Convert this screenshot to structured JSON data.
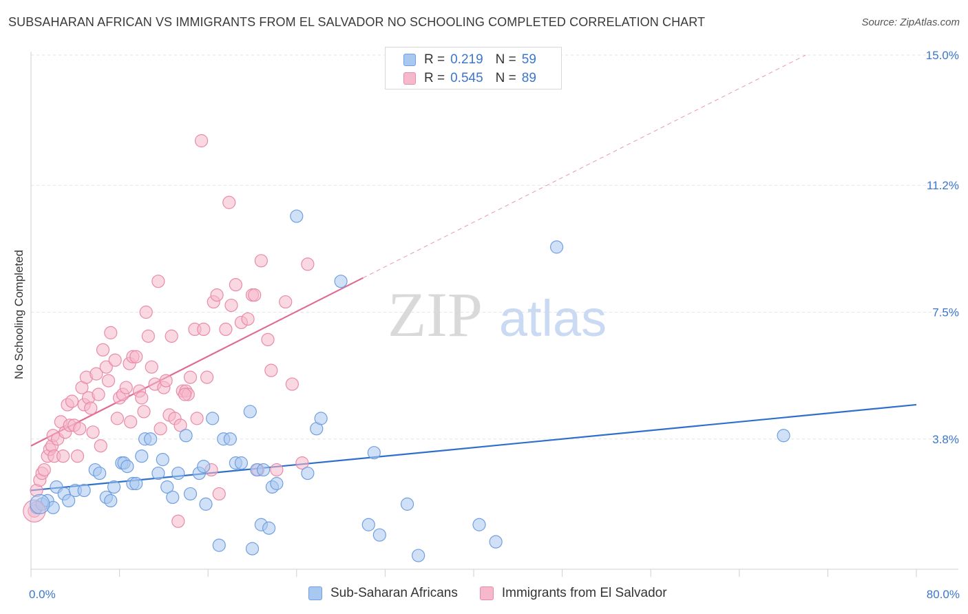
{
  "header": {
    "title": "SUBSAHARAN AFRICAN VS IMMIGRANTS FROM EL SALVADOR NO SCHOOLING COMPLETED CORRELATION CHART",
    "source": "Source: ZipAtlas.com"
  },
  "watermark": {
    "zip": "ZIP",
    "atlas": "atlas"
  },
  "legend": {
    "rows": [
      {
        "r_label": "R =",
        "r_value": "0.219",
        "n_label": "N =",
        "n_value": "59"
      },
      {
        "r_label": "R =",
        "r_value": "0.545",
        "n_label": "N =",
        "n_value": "89"
      }
    ]
  },
  "chart_data": {
    "type": "scatter",
    "title": "SUBSAHARAN AFRICAN VS IMMIGRANTS FROM EL SALVADOR NO SCHOOLING COMPLETED CORRELATION CHART",
    "ylabel": "No Schooling Completed",
    "xlim": [
      0,
      80
    ],
    "ylim": [
      0,
      15
    ],
    "x_tick_labels": [
      {
        "value": 0,
        "label": "0.0%"
      },
      {
        "value": 80,
        "label": "80.0%"
      }
    ],
    "y_tick_labels": [
      {
        "value": 3.8,
        "label": "3.8%"
      },
      {
        "value": 7.5,
        "label": "7.5%"
      },
      {
        "value": 11.2,
        "label": "11.2%"
      },
      {
        "value": 15.0,
        "label": "15.0%"
      }
    ],
    "grid": true,
    "legend_position": "top-center",
    "colors": {
      "blue_fill": "#a9c8f0",
      "blue_stroke": "#6f9fe0",
      "blue_line": "#2e6fcb",
      "pink_fill": "#f6b8cb",
      "pink_stroke": "#e98aa8",
      "pink_line": "#e06a94"
    },
    "series": [
      {
        "name": "Sub-Saharan Africans",
        "color": "#6f9fe0",
        "trend": {
          "x": [
            0,
            80
          ],
          "y": [
            2.3,
            4.8
          ],
          "extrapolated": false
        },
        "points": [
          [
            0.5,
            1.8
          ],
          [
            1.0,
            1.9
          ],
          [
            1.5,
            2.0
          ],
          [
            2.0,
            1.8
          ],
          [
            2.3,
            2.4
          ],
          [
            3.0,
            2.2
          ],
          [
            3.4,
            2.0
          ],
          [
            4.0,
            2.3
          ],
          [
            4.8,
            2.3
          ],
          [
            5.8,
            2.9
          ],
          [
            6.2,
            2.8
          ],
          [
            6.8,
            2.1
          ],
          [
            7.2,
            2.0
          ],
          [
            7.5,
            2.4
          ],
          [
            8.2,
            3.1
          ],
          [
            8.4,
            3.1
          ],
          [
            8.7,
            3.0
          ],
          [
            9.2,
            2.5
          ],
          [
            9.5,
            2.5
          ],
          [
            10.0,
            3.3
          ],
          [
            10.3,
            3.8
          ],
          [
            10.8,
            3.8
          ],
          [
            11.5,
            2.8
          ],
          [
            11.9,
            3.2
          ],
          [
            12.3,
            2.4
          ],
          [
            12.8,
            2.1
          ],
          [
            13.3,
            2.8
          ],
          [
            14.0,
            3.9
          ],
          [
            14.4,
            2.2
          ],
          [
            15.2,
            2.8
          ],
          [
            15.6,
            3.0
          ],
          [
            15.8,
            1.9
          ],
          [
            16.4,
            4.4
          ],
          [
            17.0,
            0.7
          ],
          [
            17.4,
            3.8
          ],
          [
            18.0,
            3.8
          ],
          [
            18.5,
            3.1
          ],
          [
            19.0,
            3.1
          ],
          [
            19.8,
            4.6
          ],
          [
            20.0,
            0.6
          ],
          [
            20.4,
            2.9
          ],
          [
            20.8,
            1.3
          ],
          [
            21.0,
            2.9
          ],
          [
            21.5,
            1.2
          ],
          [
            21.8,
            2.4
          ],
          [
            22.2,
            2.5
          ],
          [
            24.0,
            10.3
          ],
          [
            25.0,
            2.8
          ],
          [
            25.8,
            4.1
          ],
          [
            26.2,
            4.4
          ],
          [
            28.0,
            8.4
          ],
          [
            30.5,
            1.3
          ],
          [
            31.0,
            3.4
          ],
          [
            31.5,
            1.0
          ],
          [
            34.0,
            1.9
          ],
          [
            35.0,
            0.4
          ],
          [
            40.5,
            1.3
          ],
          [
            42.0,
            0.8
          ],
          [
            47.5,
            9.4
          ],
          [
            68.0,
            3.9
          ]
        ]
      },
      {
        "name": "Immigrants from El Salvador",
        "color": "#e98aa8",
        "trend": {
          "x": [
            0,
            30
          ],
          "y": [
            3.6,
            8.5
          ],
          "extrapolated_to": [
            70,
            15.0
          ]
        },
        "points": [
          [
            0.3,
            1.7
          ],
          [
            0.5,
            2.3
          ],
          [
            0.8,
            2.6
          ],
          [
            1.0,
            2.8
          ],
          [
            1.2,
            2.9
          ],
          [
            1.5,
            3.3
          ],
          [
            1.7,
            3.5
          ],
          [
            1.9,
            3.6
          ],
          [
            2.0,
            3.9
          ],
          [
            2.1,
            3.3
          ],
          [
            2.4,
            3.8
          ],
          [
            2.7,
            4.3
          ],
          [
            2.9,
            3.3
          ],
          [
            3.1,
            4.0
          ],
          [
            3.3,
            4.8
          ],
          [
            3.5,
            4.2
          ],
          [
            3.7,
            4.9
          ],
          [
            3.9,
            4.2
          ],
          [
            4.2,
            3.3
          ],
          [
            4.4,
            4.1
          ],
          [
            4.6,
            5.3
          ],
          [
            4.8,
            4.8
          ],
          [
            5.0,
            5.6
          ],
          [
            5.2,
            5.0
          ],
          [
            5.4,
            4.7
          ],
          [
            5.6,
            4.0
          ],
          [
            5.9,
            5.7
          ],
          [
            6.1,
            5.1
          ],
          [
            6.3,
            3.6
          ],
          [
            6.5,
            6.4
          ],
          [
            6.8,
            5.9
          ],
          [
            7.0,
            5.5
          ],
          [
            7.2,
            6.9
          ],
          [
            7.6,
            6.1
          ],
          [
            7.8,
            4.4
          ],
          [
            8.0,
            5.0
          ],
          [
            8.3,
            5.1
          ],
          [
            8.6,
            5.3
          ],
          [
            8.9,
            6.0
          ],
          [
            9.2,
            6.2
          ],
          [
            9.5,
            6.2
          ],
          [
            9.8,
            5.2
          ],
          [
            10.0,
            5.0
          ],
          [
            10.2,
            4.6
          ],
          [
            10.4,
            7.5
          ],
          [
            10.6,
            6.8
          ],
          [
            10.9,
            5.9
          ],
          [
            11.2,
            5.4
          ],
          [
            11.5,
            8.4
          ],
          [
            11.7,
            4.1
          ],
          [
            12.0,
            5.3
          ],
          [
            12.2,
            5.5
          ],
          [
            12.5,
            4.5
          ],
          [
            12.7,
            6.8
          ],
          [
            13.0,
            4.4
          ],
          [
            13.3,
            1.4
          ],
          [
            13.5,
            4.2
          ],
          [
            13.7,
            5.2
          ],
          [
            14.0,
            5.2
          ],
          [
            14.2,
            5.1
          ],
          [
            14.4,
            5.6
          ],
          [
            14.8,
            7.0
          ],
          [
            15.0,
            4.4
          ],
          [
            15.4,
            12.5
          ],
          [
            15.6,
            7.0
          ],
          [
            15.9,
            5.6
          ],
          [
            16.3,
            2.9
          ],
          [
            16.5,
            7.8
          ],
          [
            16.8,
            8.0
          ],
          [
            17.0,
            2.2
          ],
          [
            17.6,
            7.0
          ],
          [
            17.9,
            10.7
          ],
          [
            18.1,
            7.7
          ],
          [
            18.5,
            8.3
          ],
          [
            19.0,
            7.2
          ],
          [
            19.6,
            7.3
          ],
          [
            20.0,
            8.0
          ],
          [
            20.2,
            8.0
          ],
          [
            20.5,
            2.9
          ],
          [
            20.8,
            9.0
          ],
          [
            21.4,
            6.7
          ],
          [
            21.7,
            5.8
          ],
          [
            22.2,
            2.9
          ],
          [
            23.0,
            7.8
          ],
          [
            23.6,
            5.4
          ],
          [
            24.5,
            3.1
          ],
          [
            25.0,
            8.9
          ],
          [
            13.9,
            5.1
          ],
          [
            9.0,
            4.3
          ]
        ]
      }
    ]
  }
}
